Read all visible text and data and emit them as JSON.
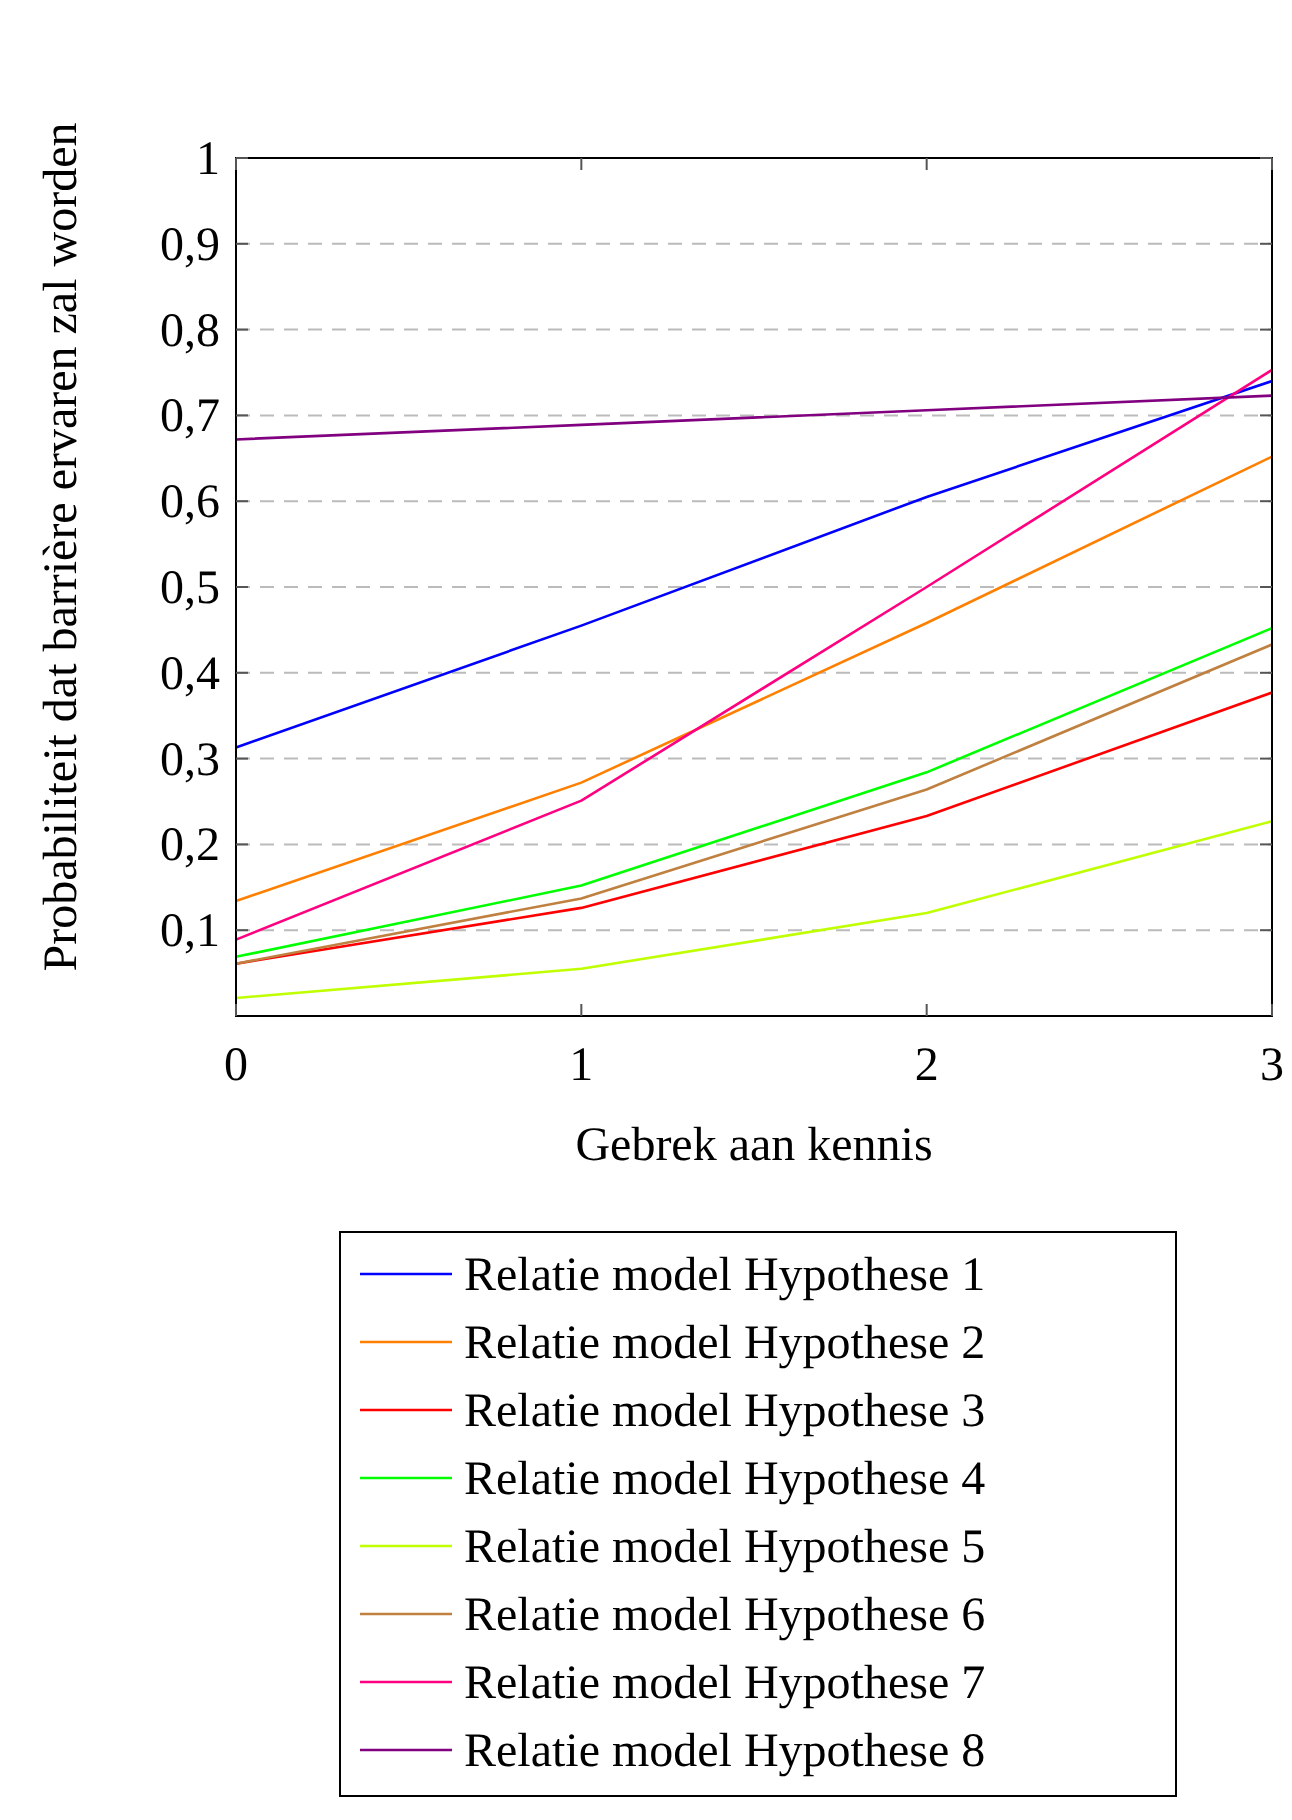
{
  "chart_data": {
    "type": "line",
    "xlabel": "Gebrek aan kennis",
    "ylabel": "Probabiliteit dat barrière ervaren zal worden",
    "x": [
      0,
      1,
      2,
      3
    ],
    "xlim": [
      0,
      3
    ],
    "xticks": [
      0,
      1,
      2,
      3
    ],
    "ylim": [
      0,
      1
    ],
    "yticks": [
      {
        "value": 0.1,
        "label": "0,1"
      },
      {
        "value": 0.2,
        "label": "0,2"
      },
      {
        "value": 0.3,
        "label": "0,3"
      },
      {
        "value": 0.4,
        "label": "0,4"
      },
      {
        "value": 0.5,
        "label": "0,5"
      },
      {
        "value": 0.6,
        "label": "0,6"
      },
      {
        "value": 0.7,
        "label": "0,7"
      },
      {
        "value": 0.8,
        "label": "0,8"
      },
      {
        "value": 0.9,
        "label": "0,9"
      },
      {
        "value": 1,
        "label": "1"
      }
    ],
    "grid": "y",
    "legend": "bottom",
    "marker": "none",
    "line_style": "solid",
    "series": [
      {
        "name": "Relatie model Hypothese 1",
        "color": "#0000ff",
        "values": [
          0.313,
          0.455,
          0.605,
          0.74
        ]
      },
      {
        "name": "Relatie model Hypothese 2",
        "color": "#ff8000",
        "values": [
          0.134,
          0.272,
          0.458,
          0.652
        ]
      },
      {
        "name": "Relatie model Hypothese 3",
        "color": "#ff0000",
        "values": [
          0.061,
          0.126,
          0.233,
          0.377
        ]
      },
      {
        "name": "Relatie model Hypothese 4",
        "color": "#00ff00",
        "values": [
          0.069,
          0.152,
          0.284,
          0.452
        ]
      },
      {
        "name": "Relatie model Hypothese 5",
        "color": "#bfff00",
        "values": [
          0.021,
          0.055,
          0.12,
          0.227
        ]
      },
      {
        "name": "Relatie model Hypothese 6",
        "color": "#bf8040",
        "values": [
          0.061,
          0.137,
          0.264,
          0.433
        ]
      },
      {
        "name": "Relatie model Hypothese 7",
        "color": "#ff0080",
        "values": [
          0.089,
          0.251,
          0.5,
          0.753
        ]
      },
      {
        "name": "Relatie model Hypothese 8",
        "color": "#800080",
        "values": [
          0.672,
          0.689,
          0.706,
          0.723
        ]
      }
    ]
  }
}
